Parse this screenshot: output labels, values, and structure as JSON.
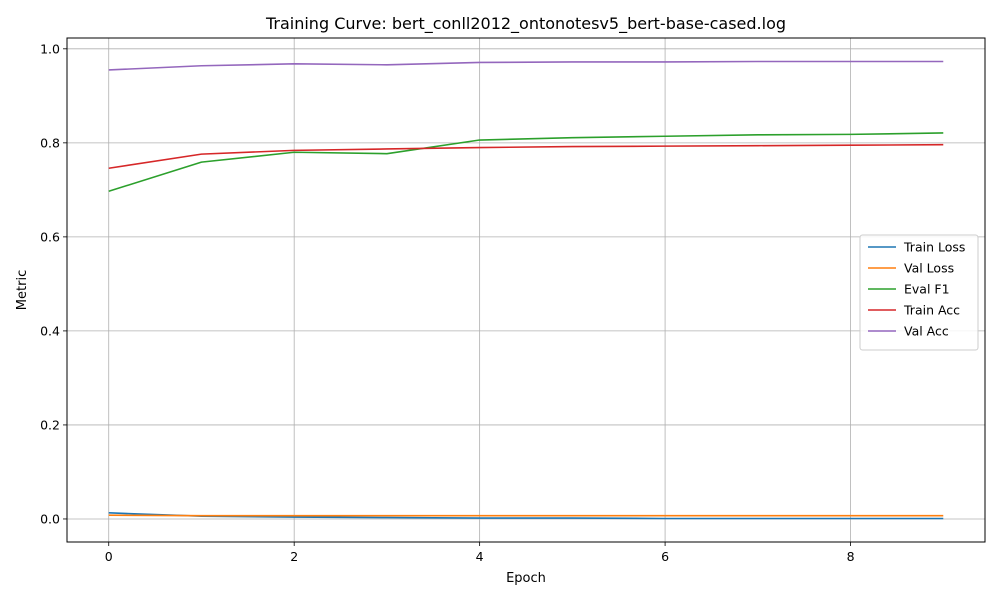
{
  "chart_data": {
    "type": "line",
    "title": "Training Curve: bert_conll2012_ontonotesv5_bert-base-cased.log",
    "xlabel": "Epoch",
    "ylabel": "Metric",
    "xlim": [
      -0.45,
      9.45
    ],
    "ylim": [
      -0.049,
      1.023
    ],
    "xticks": [
      0,
      2,
      4,
      6,
      8
    ],
    "yticks": [
      0.0,
      0.2,
      0.4,
      0.6,
      0.8,
      1.0
    ],
    "xtick_labels": [
      "0",
      "2",
      "4",
      "6",
      "8"
    ],
    "ytick_labels": [
      "0.0",
      "0.2",
      "0.4",
      "0.6",
      "0.8",
      "1.0"
    ],
    "grid": true,
    "legend_position": "center-right",
    "x": [
      0,
      1,
      2,
      3,
      4,
      5,
      6,
      7,
      8,
      9
    ],
    "series": [
      {
        "name": "Train Loss",
        "color": "#1f77b4",
        "values": [
          0.013,
          0.006,
          0.004,
          0.003,
          0.002,
          0.002,
          0.001,
          0.001,
          0.001,
          0.001
        ]
      },
      {
        "name": "Val Loss",
        "color": "#ff7f0e",
        "values": [
          0.008,
          0.007,
          0.007,
          0.007,
          0.007,
          0.007,
          0.007,
          0.007,
          0.007,
          0.007
        ]
      },
      {
        "name": "Eval F1",
        "color": "#2ca02c",
        "values": [
          0.697,
          0.759,
          0.78,
          0.777,
          0.806,
          0.811,
          0.814,
          0.817,
          0.818,
          0.821
        ]
      },
      {
        "name": "Train Acc",
        "color": "#d62728",
        "values": [
          0.746,
          0.776,
          0.784,
          0.787,
          0.79,
          0.792,
          0.793,
          0.794,
          0.795,
          0.796
        ]
      },
      {
        "name": "Val Acc",
        "color": "#9467bd",
        "values": [
          0.955,
          0.964,
          0.968,
          0.966,
          0.971,
          0.972,
          0.972,
          0.973,
          0.973,
          0.973
        ]
      }
    ]
  }
}
